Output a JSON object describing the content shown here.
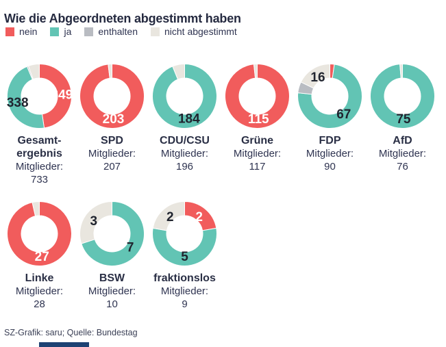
{
  "title": "Wie die Abgeordneten abgestimmt haben",
  "legend": [
    {
      "key": "nein",
      "label": "nein",
      "color": "#F15C5C"
    },
    {
      "key": "ja",
      "label": "ja",
      "color": "#62C4B4"
    },
    {
      "key": "enthalten",
      "label": "enthalten",
      "color": "#B9BCC2"
    },
    {
      "key": "nicht_abgestimmt",
      "label": "nicht abgestimmt",
      "color": "#E9E6DF"
    }
  ],
  "members_label": "Mitglieder:",
  "footer": "SZ-Grafik: saru; Quelle: Bundestag",
  "colors": {
    "title_text": "#252A40",
    "body_text": "#2E3350",
    "label_on_nein": "#FFFFFF",
    "label_dark": "#20242F",
    "segment_separator": "#FFFFFF",
    "brand_bar": "#1D4273"
  },
  "chart_data": {
    "type": "pie",
    "subtype": "donut",
    "title": "Wie die Abgeordneten abgestimmt haben",
    "legend_position": "top",
    "segment_order": [
      "nein",
      "ja",
      "enthalten",
      "nicht_abgestimmt"
    ],
    "segment_colors": {
      "nein": "#F15C5C",
      "ja": "#62C4B4",
      "enthalten": "#B9BCC2",
      "nicht_abgestimmt": "#E9E6DF"
    },
    "parties": [
      {
        "name": "Gesamt-\nergebnis",
        "row": 1,
        "members": 733,
        "votes": {
          "nein": 349,
          "ja": 338,
          "enthalten": 5,
          "nicht_abgestimmt": 41
        },
        "labeled": [
          "nein",
          "ja"
        ]
      },
      {
        "name": "SPD",
        "row": 1,
        "members": 207,
        "votes": {
          "nein": 203,
          "ja": 0,
          "enthalten": 0,
          "nicht_abgestimmt": 4
        },
        "labeled": [
          "nein"
        ]
      },
      {
        "name": "CDU/CSU",
        "row": 1,
        "members": 196,
        "votes": {
          "nein": 0,
          "ja": 184,
          "enthalten": 0,
          "nicht_abgestimmt": 12
        },
        "labeled": [
          "ja"
        ]
      },
      {
        "name": "Grüne",
        "row": 1,
        "members": 117,
        "votes": {
          "nein": 115,
          "ja": 0,
          "enthalten": 0,
          "nicht_abgestimmt": 2
        },
        "labeled": [
          "nein"
        ]
      },
      {
        "name": "FDP",
        "row": 1,
        "members": 90,
        "votes": {
          "nein": 2,
          "ja": 67,
          "enthalten": 5,
          "nicht_abgestimmt": 16
        },
        "labeled": [
          "ja",
          "nicht_abgestimmt"
        ]
      },
      {
        "name": "AfD",
        "row": 1,
        "members": 76,
        "votes": {
          "nein": 0,
          "ja": 75,
          "enthalten": 0,
          "nicht_abgestimmt": 1
        },
        "labeled": [
          "ja"
        ]
      },
      {
        "name": "Linke",
        "row": 2,
        "members": 28,
        "votes": {
          "nein": 27,
          "ja": 0,
          "enthalten": 0,
          "nicht_abgestimmt": 1
        },
        "labeled": [
          "nein"
        ]
      },
      {
        "name": "BSW",
        "row": 2,
        "members": 10,
        "votes": {
          "nein": 0,
          "ja": 7,
          "enthalten": 0,
          "nicht_abgestimmt": 3
        },
        "labeled": [
          "ja",
          "nicht_abgestimmt"
        ]
      },
      {
        "name": "fraktionslos",
        "row": 2,
        "members": 9,
        "votes": {
          "nein": 2,
          "ja": 5,
          "enthalten": 0,
          "nicht_abgestimmt": 2
        },
        "labeled": [
          "nein",
          "ja",
          "nicht_abgestimmt"
        ]
      }
    ]
  }
}
